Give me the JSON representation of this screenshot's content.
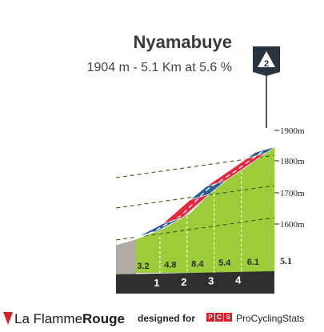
{
  "climb": {
    "name": "Nyamabuye",
    "subtitle": "1904 m - 5.1 Km at 5.6 %",
    "category": "2"
  },
  "chart_data": {
    "type": "area",
    "title": "Nyamabuye",
    "subtitle": "1904 m - 5.1 Km at 5.6 %",
    "y_ticks": [
      "1600m",
      "1700m",
      "1800m",
      "1900m"
    ],
    "total_length_label": "5.1",
    "km_markers": [
      "1",
      "2",
      "3",
      "4"
    ],
    "segments": [
      {
        "km_start": 0,
        "km_end": 1,
        "gradient_label": "3.2",
        "gradient": 3.2,
        "color": "#9ccc3a"
      },
      {
        "km_start": 1,
        "km_end": 2,
        "gradient_label": "4.8",
        "gradient": 4.8,
        "color": "#9ccc3a"
      },
      {
        "km_start": 2,
        "km_end": 3,
        "gradient_label": "8.4",
        "gradient": 8.4,
        "color": "#9ccc3a"
      },
      {
        "km_start": 3,
        "km_end": 4,
        "gradient_label": "5.4",
        "gradient": 5.4,
        "color": "#9ccc3a"
      },
      {
        "km_start": 4,
        "km_end": 5.1,
        "gradient_label": "6.1",
        "gradient": 6.1,
        "color": "#9ccc3a"
      }
    ],
    "road_bands": [
      {
        "km_start": 0.0,
        "km_end": 0.8,
        "color": "#ffffff"
      },
      {
        "km_start": 0.8,
        "km_end": 1.7,
        "color": "#2a5f94"
      },
      {
        "km_start": 1.7,
        "km_end": 2.7,
        "color": "#e8273f"
      },
      {
        "km_start": 2.7,
        "km_end": 3.3,
        "color": "#2a5f94"
      },
      {
        "km_start": 3.3,
        "km_end": 4.8,
        "color": "#e8273f"
      },
      {
        "km_start": 4.8,
        "km_end": 5.1,
        "color": "#2a5f94"
      }
    ],
    "colors": {
      "fill": "#9ccc3a",
      "side": "#b0aca3",
      "base": "#2f2f2f",
      "blue": "#2a5f94",
      "red": "#e8273f"
    }
  },
  "footer": {
    "brand_light": "La Flamme",
    "brand_bold": "Rouge",
    "designed_for": "designed for",
    "pcs_letters": [
      "P",
      "C",
      "S"
    ],
    "pcs_name": "ProCyclingStats"
  }
}
